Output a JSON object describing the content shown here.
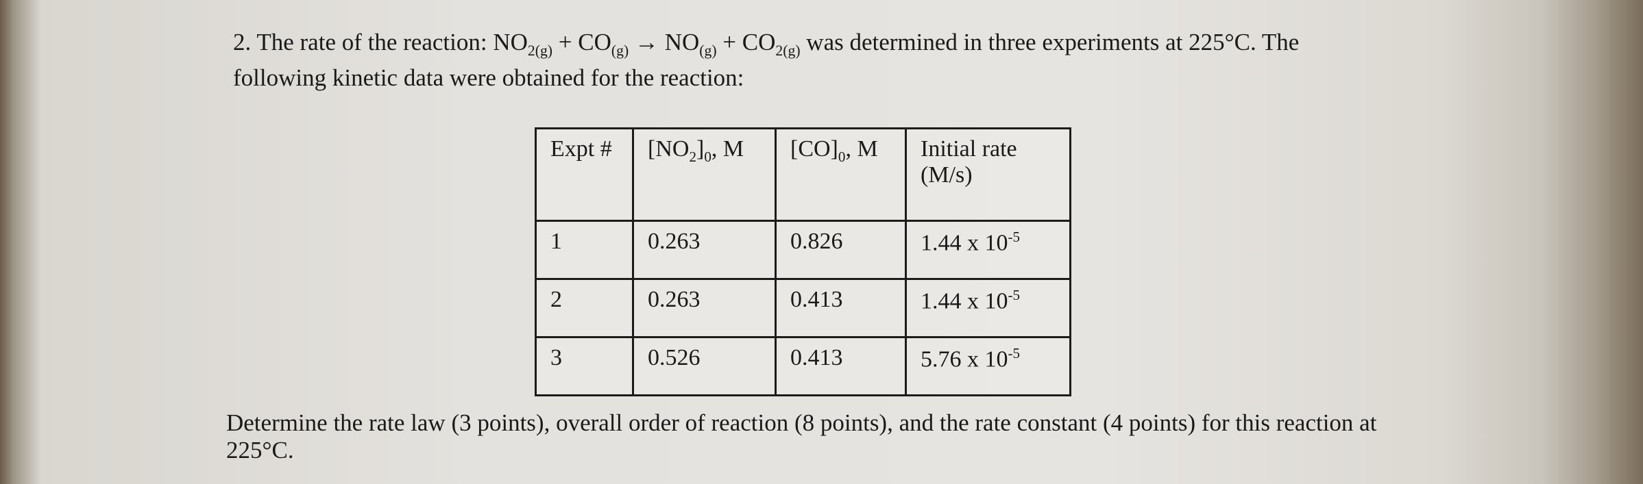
{
  "question": {
    "runs": [
      {
        "t": "2. The rate of the reaction: NO"
      },
      {
        "sub": "2(g)"
      },
      {
        "t": " + CO"
      },
      {
        "sub": "(g)"
      },
      {
        "t": " → NO"
      },
      {
        "sub": "(g)"
      },
      {
        "t": " + CO"
      },
      {
        "sub": "2(g)"
      },
      {
        "t": " was determined in three experiments at 225°C. The following kinetic data were obtained for the reaction:"
      }
    ]
  },
  "table": {
    "header": [
      [
        {
          "t": "Expt #"
        }
      ],
      [
        {
          "t": "[NO"
        },
        {
          "sub": "2"
        },
        {
          "t": "]"
        },
        {
          "sub": "0"
        },
        {
          "t": ", M"
        }
      ],
      [
        {
          "t": "[CO]"
        },
        {
          "sub": "0"
        },
        {
          "t": ", M"
        }
      ],
      [
        {
          "t": "Initial rate (M/s)"
        }
      ]
    ],
    "rows": [
      [
        1,
        0.263,
        0.826,
        [
          {
            "t": "1.44 x 10"
          },
          {
            "sup": "-5"
          }
        ]
      ],
      [
        2,
        0.263,
        0.413,
        [
          {
            "t": "1.44 x 10"
          },
          {
            "sup": "-5"
          }
        ]
      ],
      [
        3,
        0.526,
        0.413,
        [
          {
            "t": "5.76 x 10"
          },
          {
            "sup": "-5"
          }
        ]
      ]
    ]
  },
  "footer": "Determine the rate law (3 points), overall order of reaction (8 points), and the rate constant (4 points) for this reaction at 225°C."
}
